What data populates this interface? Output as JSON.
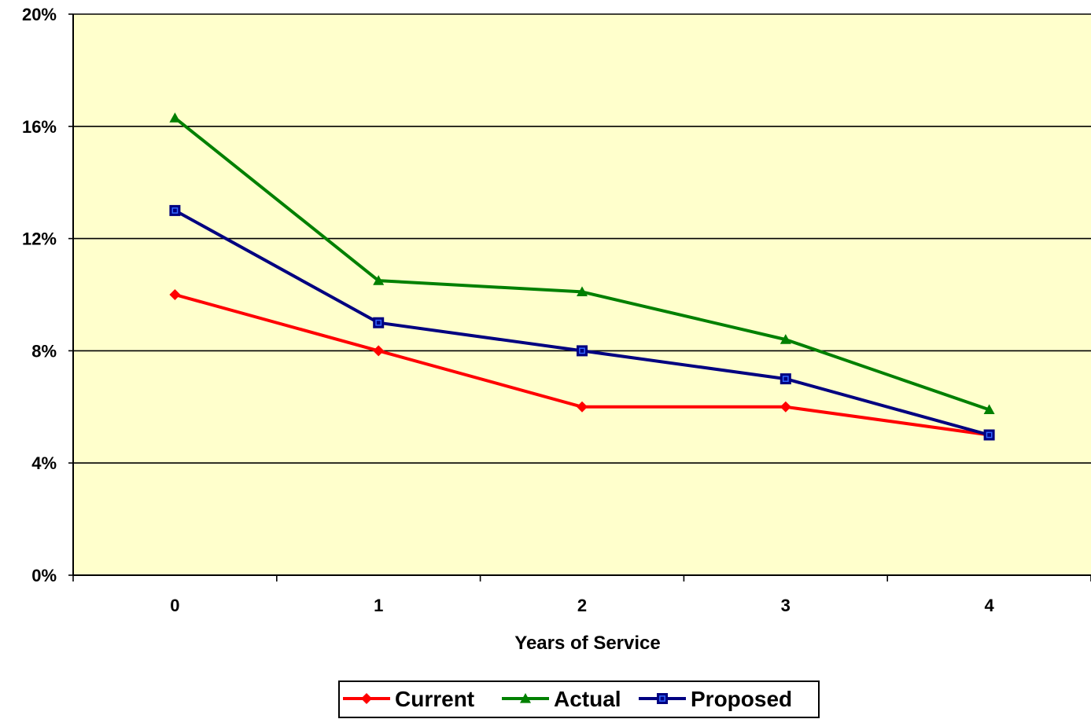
{
  "chart_data": {
    "type": "line",
    "x": [
      "0",
      "1",
      "2",
      "3",
      "4"
    ],
    "xlabel": "Years of Service",
    "ylabel": "",
    "ylim": [
      0,
      20
    ],
    "yticks": [
      0,
      4,
      8,
      12,
      16,
      20
    ],
    "ytick_labels": [
      "0%",
      "4%",
      "8%",
      "12%",
      "16%",
      "20%"
    ],
    "grid": true,
    "legend_position": "bottom",
    "plot_background": "#ffffcc",
    "series": [
      {
        "name": "Current",
        "color": "#ff0000",
        "marker": "diamond",
        "values": [
          10,
          8,
          6,
          6,
          5
        ]
      },
      {
        "name": "Actual",
        "color": "#008000",
        "marker": "triangle",
        "values": [
          16.3,
          10.5,
          10.1,
          8.4,
          5.9
        ]
      },
      {
        "name": "Proposed",
        "color": "#000080",
        "marker": "square",
        "values": [
          13,
          9,
          8,
          7,
          5
        ]
      }
    ]
  }
}
